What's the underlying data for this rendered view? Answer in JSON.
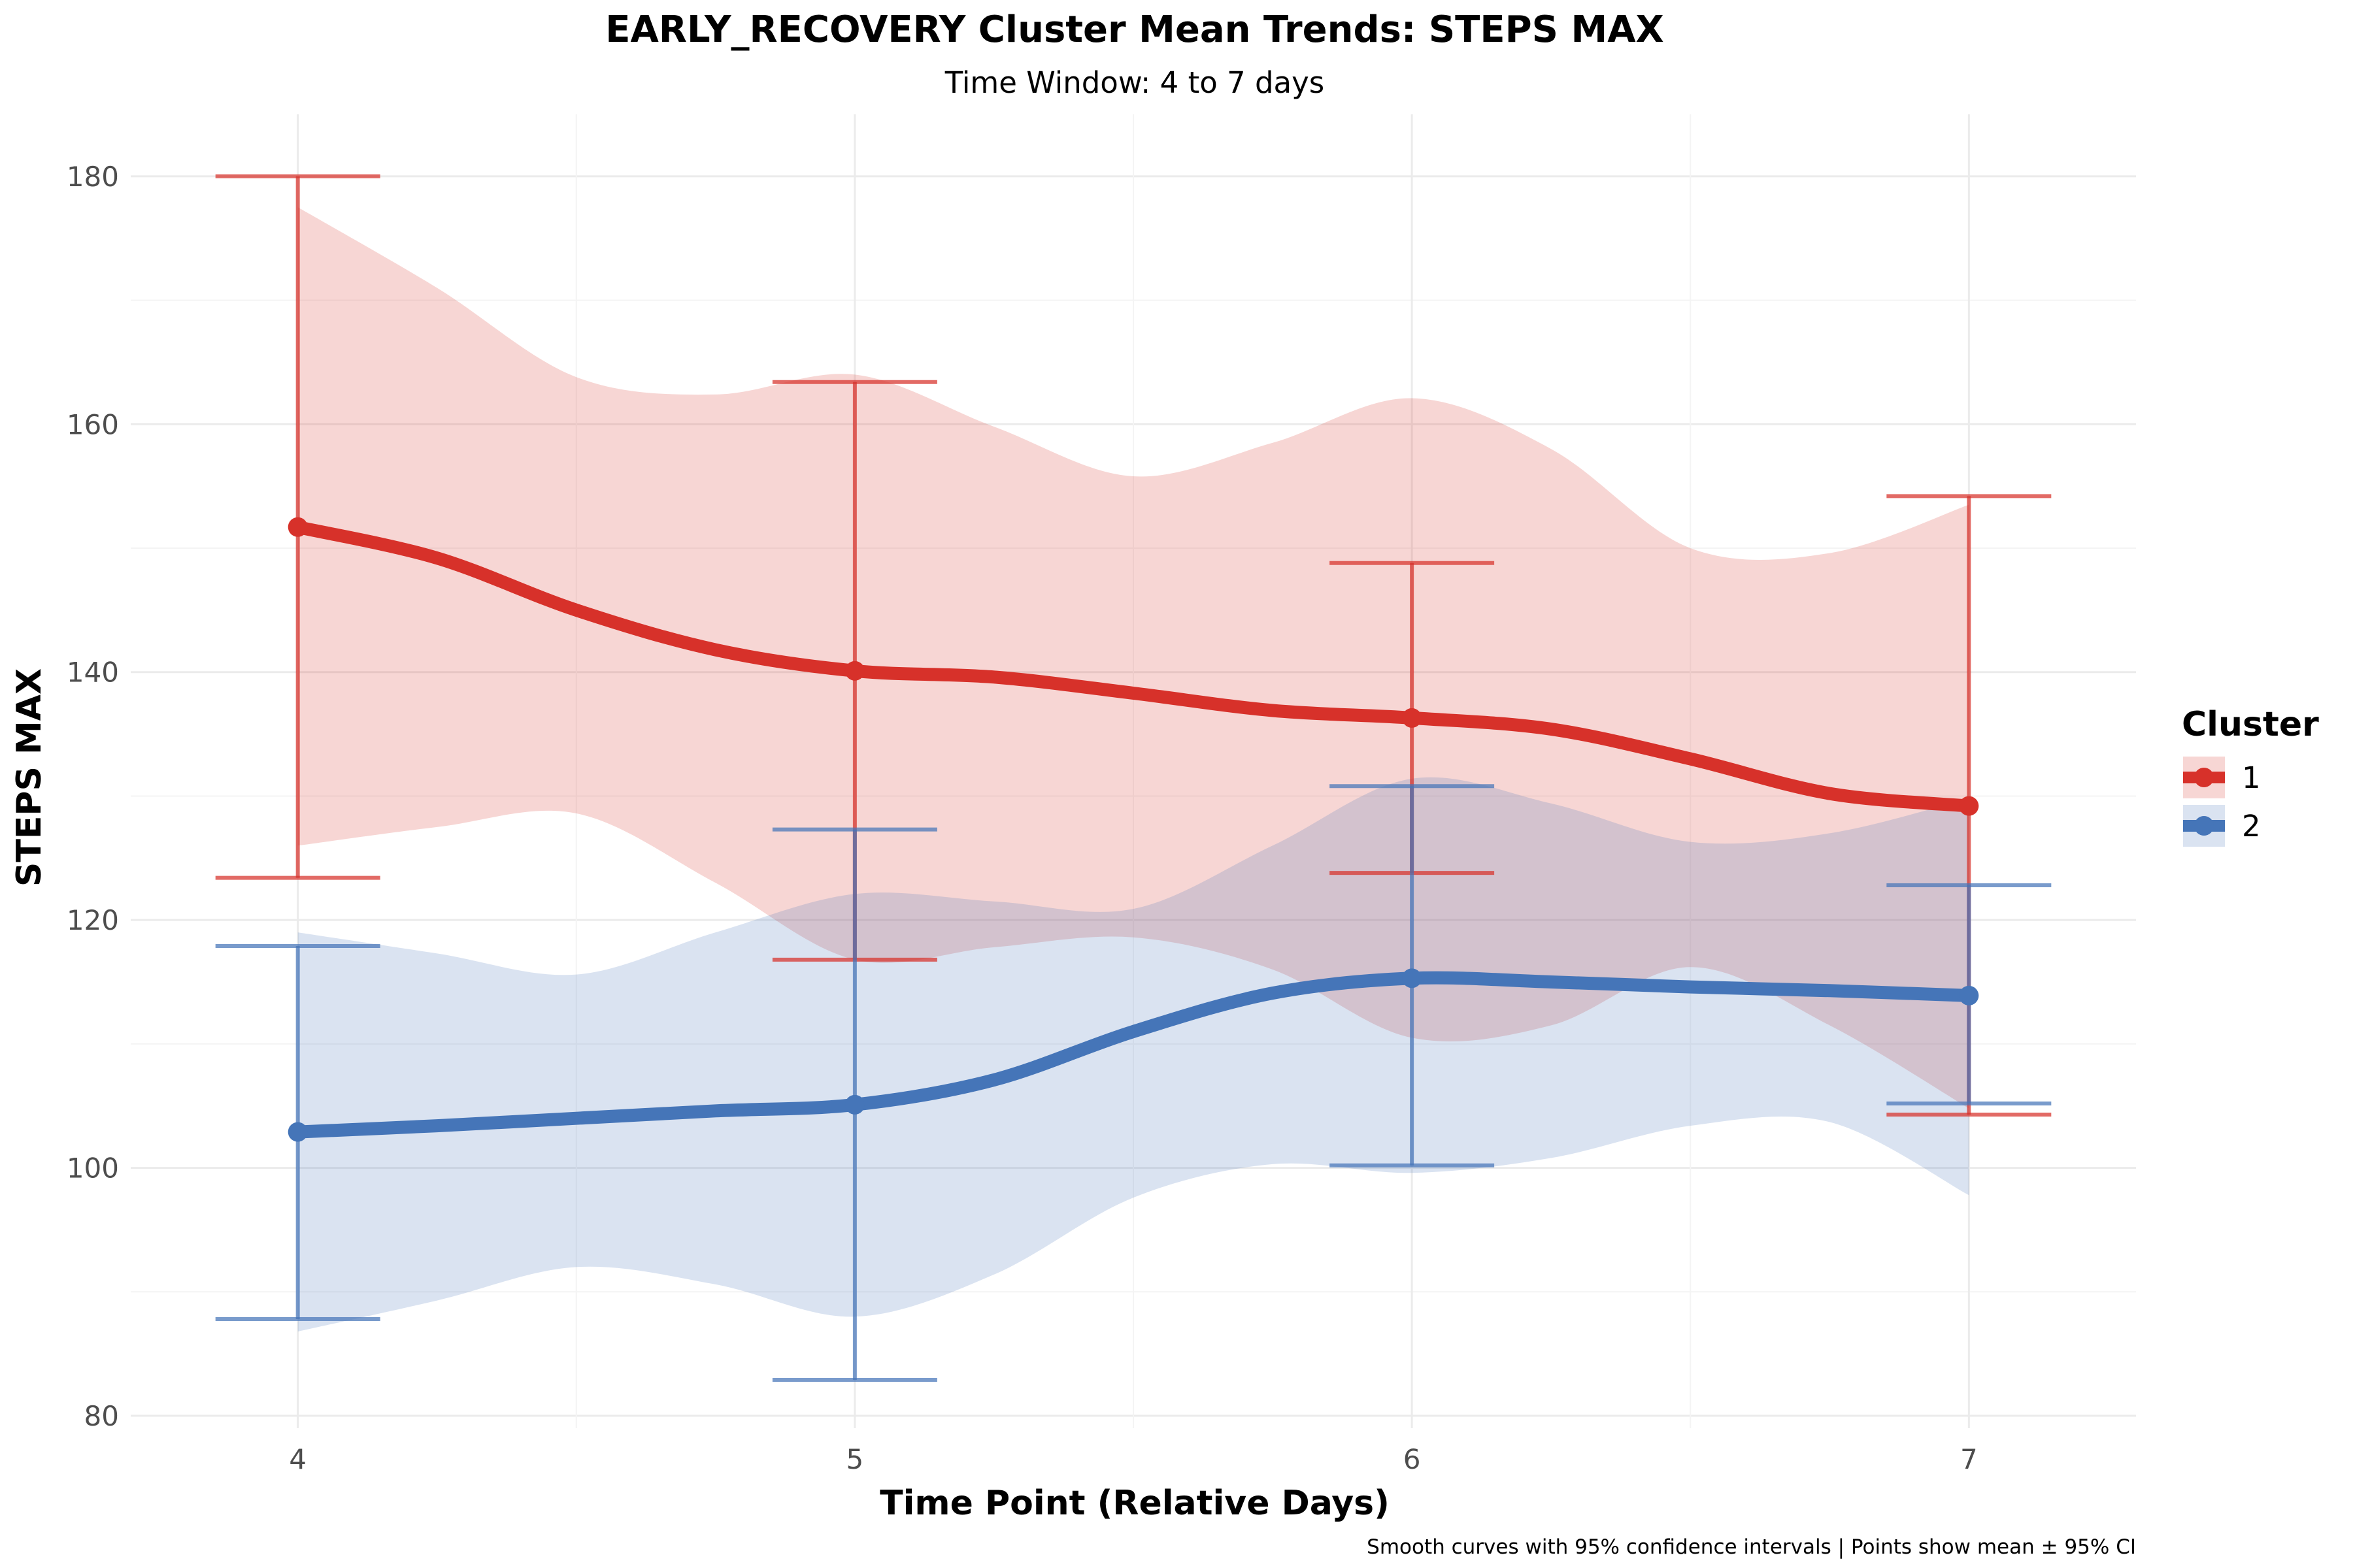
{
  "chart_data": {
    "type": "line",
    "title": "EARLY_RECOVERY Cluster Mean Trends: STEPS MAX",
    "subtitle": "Time Window: 4 to 7 days",
    "xlabel": "Time Point (Relative Days)",
    "ylabel": "STEPS MAX",
    "caption": "Smooth curves with 95% confidence intervals | Points show mean ± 95% CI",
    "x": [
      4,
      5,
      6,
      7
    ],
    "x_tick_labels": [
      "4",
      "5",
      "6",
      "7"
    ],
    "y_tick_labels": [
      "80",
      "100",
      "120",
      "140",
      "160",
      "180"
    ],
    "y_ticks": [
      80,
      100,
      120,
      140,
      160,
      180
    ],
    "xlim": [
      3.7,
      7.3
    ],
    "ylim": [
      79,
      185
    ],
    "grid": true,
    "legend": {
      "title": "Cluster",
      "position": "right"
    },
    "series": [
      {
        "name": "1",
        "color": "#D7312A",
        "mean": [
          151.7,
          140.1,
          136.3,
          129.2
        ],
        "ci_lower": [
          123.4,
          116.8,
          123.8,
          104.3
        ],
        "ci_upper": [
          180.0,
          163.4,
          148.8,
          154.2
        ],
        "smooth_x": [
          4.0,
          4.25,
          4.5,
          4.75,
          5.0,
          5.25,
          5.5,
          5.75,
          6.0,
          6.25,
          6.5,
          6.75,
          7.0
        ],
        "smooth_mean": [
          151.7,
          149.2,
          145.0,
          141.8,
          140.1,
          139.6,
          138.3,
          136.9,
          136.3,
          135.4,
          133.0,
          130.2,
          129.2
        ],
        "smooth_lower": [
          126.0,
          127.5,
          128.6,
          123.0,
          116.8,
          117.8,
          118.6,
          116.0,
          110.5,
          111.5,
          116.2,
          111.5,
          104.8
        ],
        "smooth_upper": [
          177.5,
          171.0,
          163.8,
          162.4,
          164.0,
          159.8,
          155.8,
          158.5,
          162.1,
          158.0,
          150.0,
          149.6,
          153.5
        ]
      },
      {
        "name": "2",
        "color": "#4575B8",
        "mean": [
          102.9,
          105.1,
          115.3,
          113.9
        ],
        "ci_lower": [
          87.8,
          82.9,
          100.2,
          105.2
        ],
        "ci_upper": [
          117.9,
          127.3,
          130.8,
          122.8
        ],
        "smooth_x": [
          4.0,
          4.25,
          4.5,
          4.75,
          5.0,
          5.25,
          5.5,
          5.75,
          6.0,
          6.25,
          6.5,
          6.75,
          7.0
        ],
        "smooth_mean": [
          102.9,
          103.4,
          104.0,
          104.6,
          105.1,
          107.1,
          111.0,
          114.1,
          115.3,
          115.0,
          114.6,
          114.3,
          113.9
        ],
        "smooth_lower": [
          86.8,
          89.3,
          92.0,
          90.6,
          88.0,
          91.4,
          97.6,
          100.3,
          99.6,
          100.8,
          103.4,
          103.7,
          97.8
        ],
        "smooth_upper": [
          119.0,
          117.3,
          115.6,
          119.0,
          122.1,
          121.5,
          120.9,
          126.0,
          131.4,
          129.4,
          126.3,
          127.0,
          129.8
        ]
      }
    ]
  }
}
